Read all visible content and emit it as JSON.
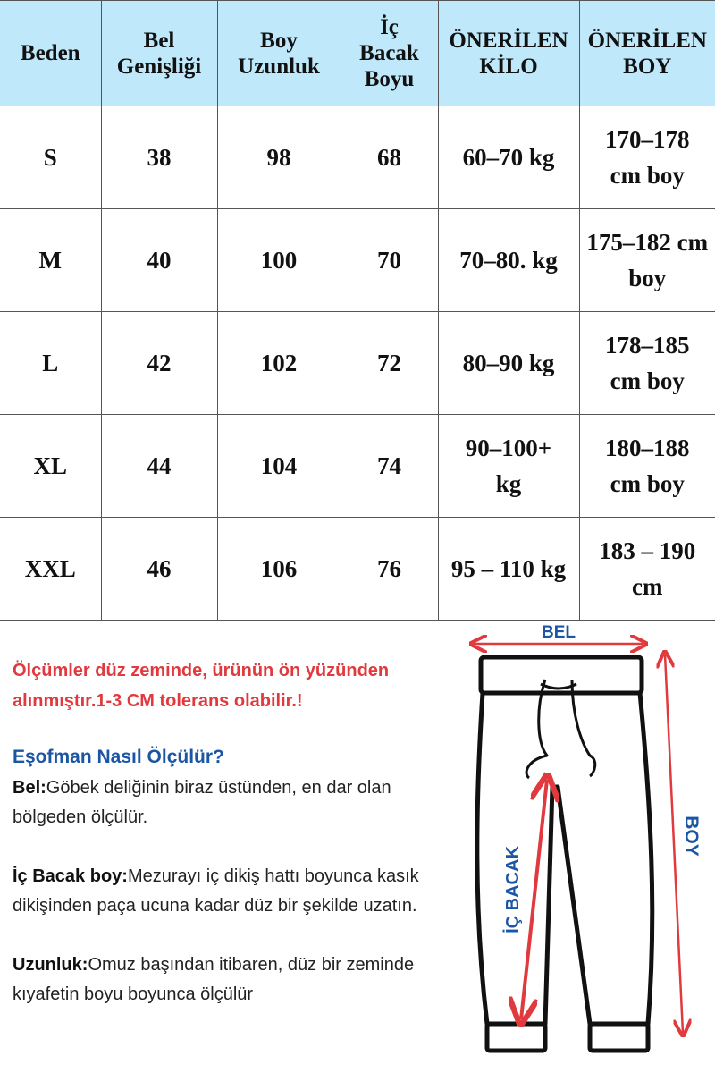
{
  "table": {
    "headers": [
      "Beden",
      "Bel\nGenişliği",
      "Boy\nUzunluk",
      "İç\nBacak\nBoyu",
      "ÖNERİLEN\nKİLO",
      "ÖNERİLEN\nBOY"
    ],
    "rows": [
      [
        "S",
        "38",
        "98",
        "68",
        "60–70 kg",
        "170–178\ncm boy"
      ],
      [
        "M",
        "40",
        "100",
        "70",
        "70–80. kg",
        "175–182 cm\nboy"
      ],
      [
        "L",
        "42",
        "102",
        "72",
        "80–90 kg",
        "178–185\ncm boy"
      ],
      [
        "XL",
        "44",
        "104",
        "74",
        "90–100+\nkg",
        "180–188\ncm boy"
      ],
      [
        "XXL",
        "46",
        "106",
        "76",
        "95 – 110 kg",
        "183 – 190\ncm"
      ]
    ],
    "header_bg": "#bfe9fb"
  },
  "notes": {
    "warning": "Ölçümler düz zeminde, ürünün ön yüzünden alınmıştır.1-3 CM tolerans olabilir.!",
    "title": "Eşofman Nasıl Ölçülür?",
    "items": [
      {
        "label": "Bel:",
        "text": "Göbek deliğinin biraz üstünden, en dar olan bölgeden ölçülür."
      },
      {
        "label": "İç Bacak boy:",
        "text": "Mezurayı iç dikiş hattı boyunca kasık dikişinden paça ucuna kadar düz bir şekilde uzatın."
      },
      {
        "label": "Uzunluk:",
        "text": "Omuz başından itibaren, düz bir zeminde kıyafetin boyu boyunca ölçülür"
      }
    ],
    "warning_color": "#e03a3e",
    "title_color": "#1b56a4"
  },
  "diagram": {
    "bel_label": "BEL",
    "boy_label": "BOY",
    "inseam_label": "İÇ BACAK",
    "arrow_color": "#e03a3e",
    "label_color": "#1b56a4"
  }
}
